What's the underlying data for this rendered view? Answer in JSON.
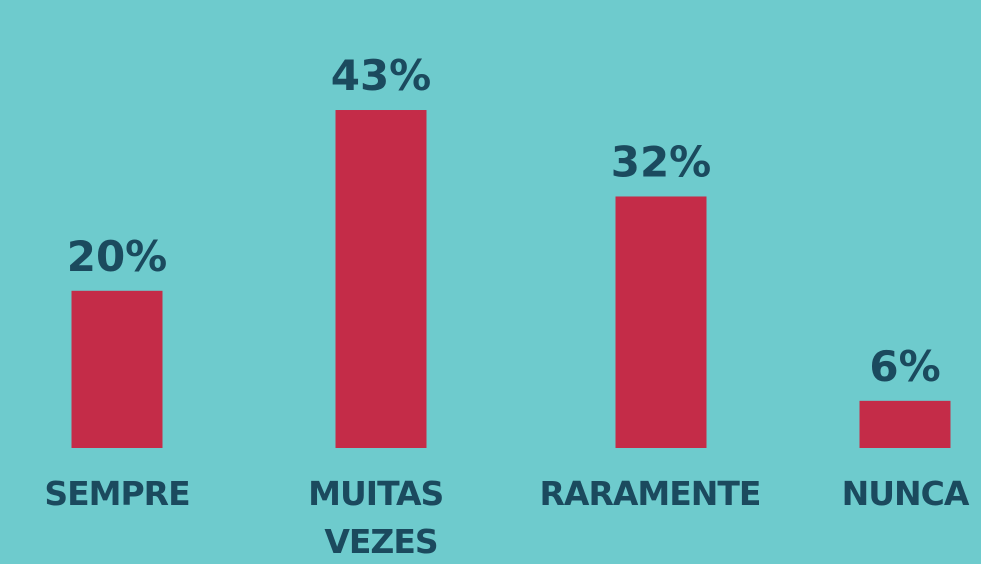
{
  "chart_data": {
    "type": "bar",
    "categories": [
      "SEMPRE",
      "MUITAS VEZES",
      "RARAMENTE",
      "NUNCA"
    ],
    "values": [
      20,
      43,
      32,
      6
    ],
    "value_labels": [
      "20%",
      "43%",
      "32%",
      "6%"
    ],
    "color": "#c42c48"
  }
}
